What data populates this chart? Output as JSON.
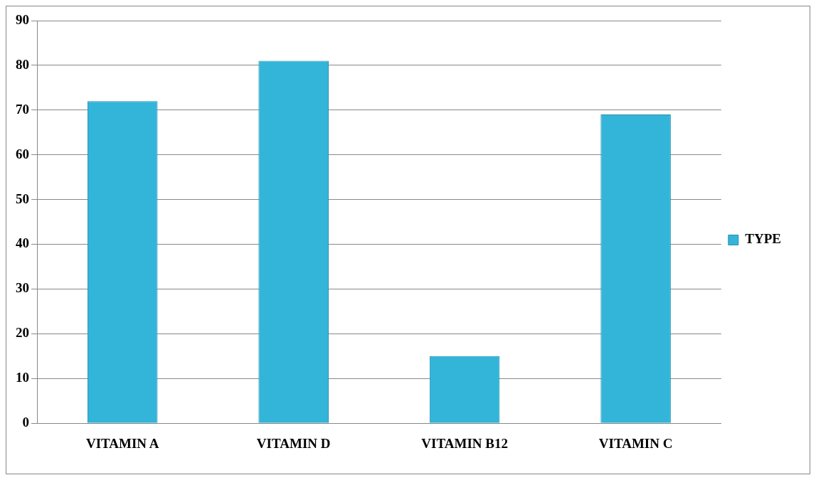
{
  "chart_data": {
    "type": "bar",
    "categories": [
      "VITAMIN A",
      "VITAMIN D",
      "VITAMIN B12",
      "VITAMIN C"
    ],
    "series": [
      {
        "name": "TYPE",
        "color": "#33b5da",
        "values": [
          72,
          81,
          15,
          69
        ]
      }
    ],
    "ylim": [
      0,
      90
    ],
    "yticks": [
      0,
      10,
      20,
      30,
      40,
      50,
      60,
      70,
      80,
      90
    ],
    "grid": "y",
    "legend": "right"
  }
}
